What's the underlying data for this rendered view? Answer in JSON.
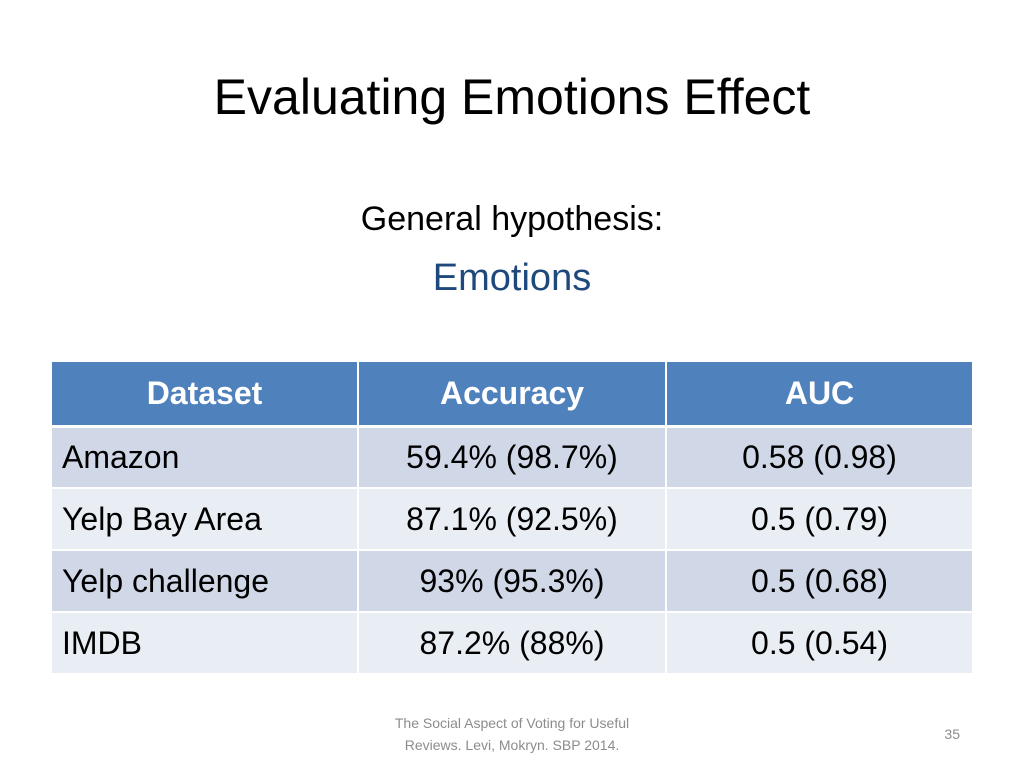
{
  "slide": {
    "title": "Evaluating Emotions Effect",
    "subtitle": "General hypothesis:",
    "hypothesis": "Emotions",
    "accent_color": "#1f497d",
    "table_header_color": "#4f81bd",
    "table_row_colors": [
      "#d0d8e8",
      "#e9edf4"
    ]
  },
  "table": {
    "headers": [
      "Dataset",
      "Accuracy",
      "AUC"
    ],
    "rows": [
      {
        "dataset": "Amazon",
        "accuracy": "59.4% (98.7%)",
        "auc": "0.58 (0.98)"
      },
      {
        "dataset": "Yelp Bay Area",
        "accuracy": "87.1% (92.5%)",
        "auc": "0.5 (0.79)"
      },
      {
        "dataset": "Yelp challenge",
        "accuracy": "93% (95.3%)",
        "auc": "0.5 (0.68)"
      },
      {
        "dataset": "IMDB",
        "accuracy": "87.2% (88%)",
        "auc": "0.5 (0.54)"
      }
    ]
  },
  "footer": {
    "citation_line1": "The Social Aspect of Voting for Useful",
    "citation_line2": "Reviews. Levi, Mokryn. SBP 2014.",
    "page_number": "35"
  }
}
